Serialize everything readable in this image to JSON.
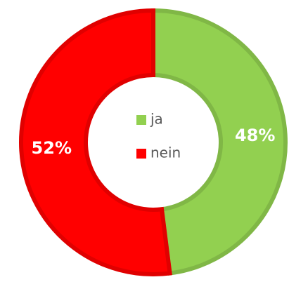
{
  "chart_data": {
    "type": "donut",
    "categories": [
      "ja",
      "nein"
    ],
    "values": [
      48,
      52
    ],
    "value_labels": [
      "48%",
      "52%"
    ],
    "colors": [
      "#92d050",
      "#ff0000"
    ],
    "legend": "center"
  }
}
